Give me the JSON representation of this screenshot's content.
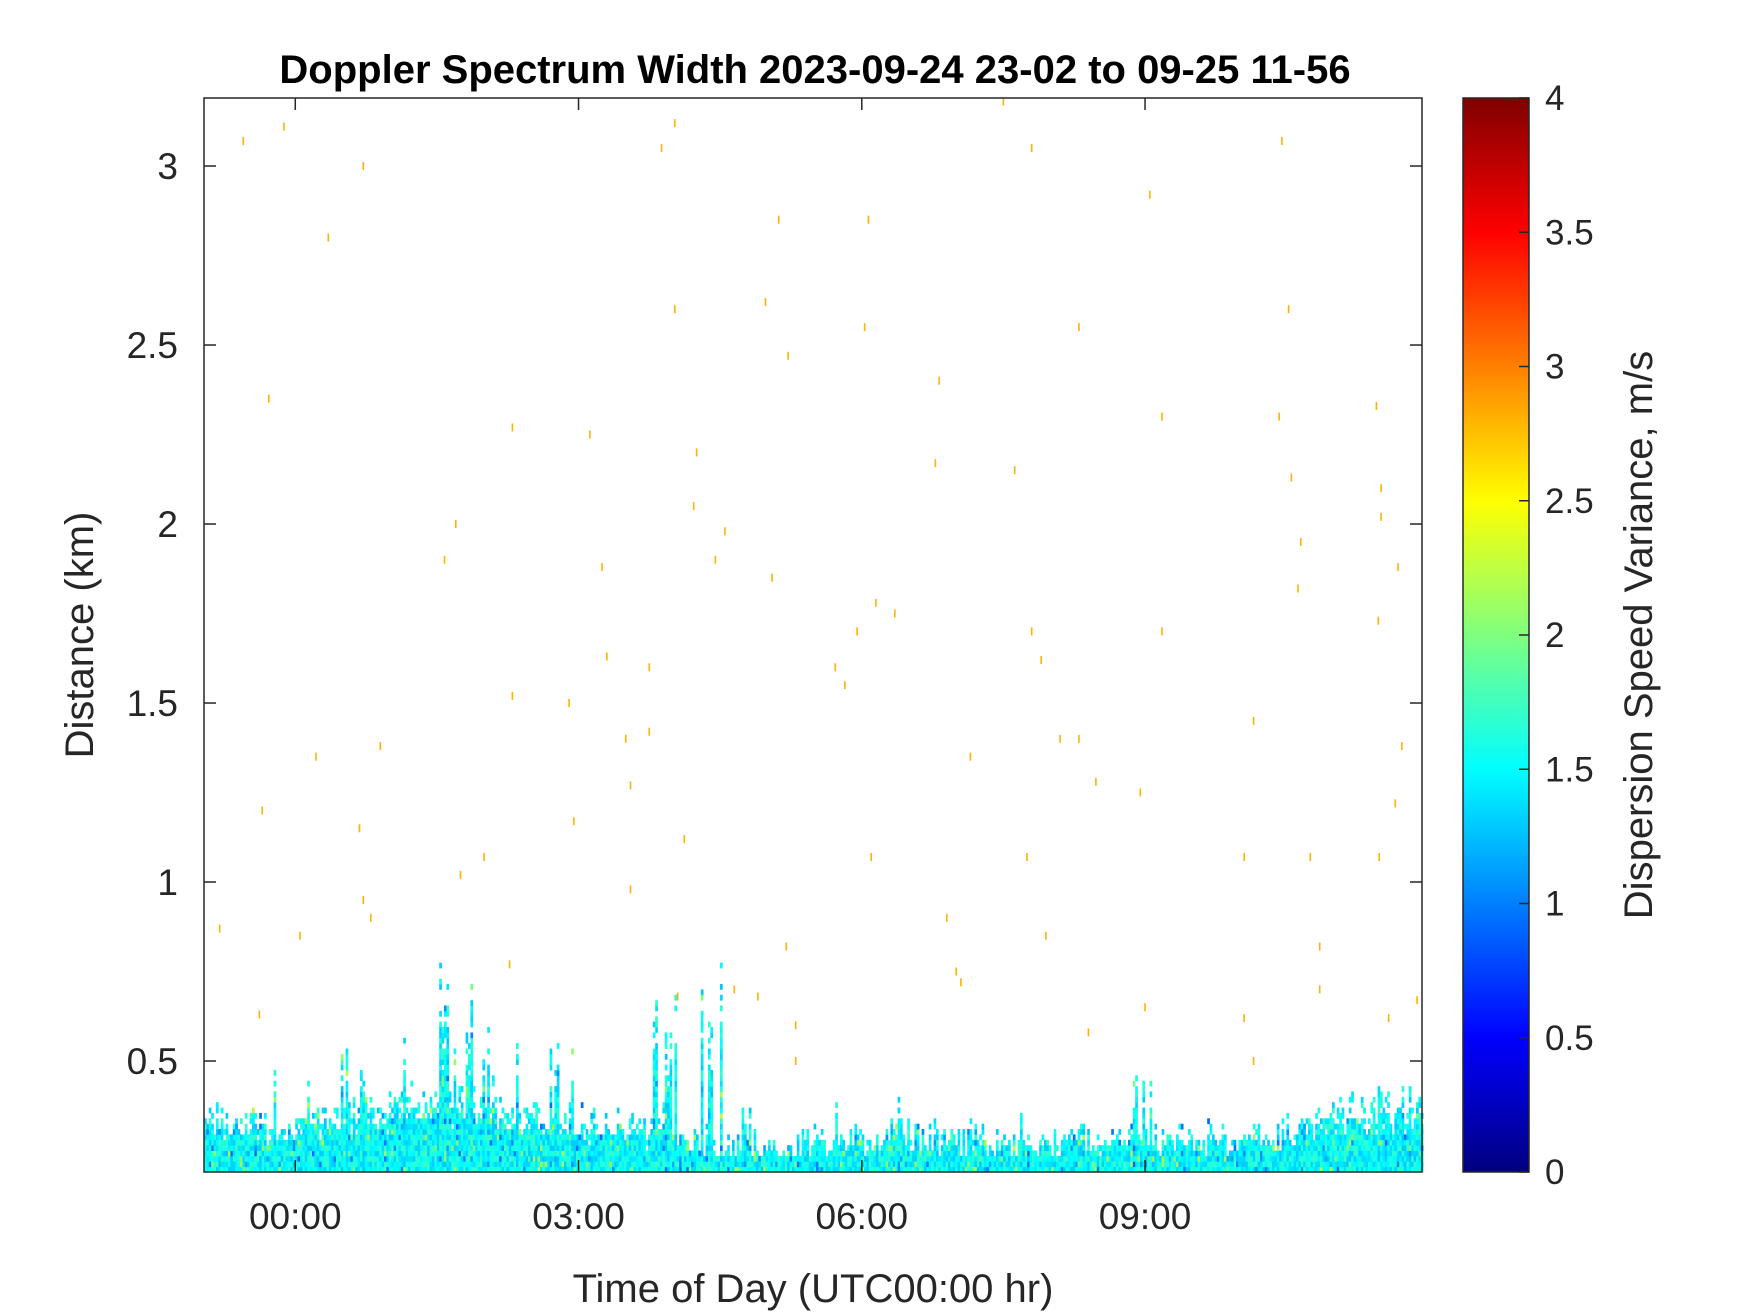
{
  "chart_data": {
    "type": "heatmap",
    "title": "Doppler Spectrum Width 2023-09-24 23-02 to 09-25 11-56",
    "xlabel": "Time of Day (UTC00:00 hr)",
    "ylabel": "Distance (km)",
    "xlim_hours": [
      -0.9667,
      11.9333
    ],
    "ylim": [
      0.19,
      3.19
    ],
    "xticks": [
      {
        "value": 0,
        "label": "00:00"
      },
      {
        "value": 3,
        "label": "03:00"
      },
      {
        "value": 6,
        "label": "06:00"
      },
      {
        "value": 9,
        "label": "09:00"
      }
    ],
    "yticks": [
      {
        "value": 0.5,
        "label": "0.5"
      },
      {
        "value": 1,
        "label": "1"
      },
      {
        "value": 1.5,
        "label": "1.5"
      },
      {
        "value": 2,
        "label": "2"
      },
      {
        "value": 2.5,
        "label": "2.5"
      },
      {
        "value": 3,
        "label": "3"
      }
    ],
    "colorbar": {
      "label": "Dispersion Speed Variance, m/s",
      "colormap": "jet",
      "range": [
        0,
        4
      ],
      "ticks": [
        {
          "value": 0,
          "label": "0"
        },
        {
          "value": 0.5,
          "label": "0.5"
        },
        {
          "value": 1,
          "label": "1"
        },
        {
          "value": 1.5,
          "label": "1.5"
        },
        {
          "value": 2,
          "label": "2"
        },
        {
          "value": 2.5,
          "label": "2.5"
        },
        {
          "value": 3,
          "label": "3"
        },
        {
          "value": 3.5,
          "label": "3.5"
        },
        {
          "value": 4,
          "label": "4"
        }
      ]
    },
    "surface_band": {
      "description_value": "dense cells of 1.2-1.8 m/s from the lowest range gate up to about 0.3-0.45 km, occasionally extending to about 0.78 km",
      "typical_value": 1.5,
      "base_top_km": [
        {
          "t": -0.95,
          "km": 0.34
        },
        {
          "t": 0.0,
          "km": 0.33
        },
        {
          "t": 0.5,
          "km": 0.36
        },
        {
          "t": 1.5,
          "km": 0.4
        },
        {
          "t": 2.5,
          "km": 0.36
        },
        {
          "t": 3.5,
          "km": 0.32
        },
        {
          "t": 4.5,
          "km": 0.27
        },
        {
          "t": 5.5,
          "km": 0.27
        },
        {
          "t": 6.5,
          "km": 0.29
        },
        {
          "t": 7.5,
          "km": 0.27
        },
        {
          "t": 8.5,
          "km": 0.28
        },
        {
          "t": 9.5,
          "km": 0.27
        },
        {
          "t": 10.5,
          "km": 0.3
        },
        {
          "t": 11.0,
          "km": 0.36
        },
        {
          "t": 11.93,
          "km": 0.38
        }
      ],
      "tall_spikes": [
        {
          "t": 0.6,
          "km": 0.6
        },
        {
          "t": 1.5,
          "km": 0.78
        },
        {
          "t": 1.75,
          "km": 0.78
        },
        {
          "t": 2.05,
          "km": 0.68
        },
        {
          "t": 2.85,
          "km": 0.65
        },
        {
          "t": 3.35,
          "km": 0.73
        },
        {
          "t": 3.9,
          "km": 0.72
        },
        {
          "t": 4.4,
          "km": 0.72
        },
        {
          "t": 6.45,
          "km": 0.45
        },
        {
          "t": 11.2,
          "km": 0.44
        }
      ]
    },
    "sparse_points_value": 2.8,
    "sparse_points": [
      {
        "t": -0.55,
        "km": 3.07
      },
      {
        "t": -0.12,
        "km": 3.11
      },
      {
        "t": 0.72,
        "km": 3.0
      },
      {
        "t": 0.35,
        "km": 2.8
      },
      {
        "t": -0.28,
        "km": 2.35
      },
      {
        "t": 1.7,
        "km": 2.0
      },
      {
        "t": 1.58,
        "km": 1.9
      },
      {
        "t": 2.3,
        "km": 2.27
      },
      {
        "t": 3.12,
        "km": 2.25
      },
      {
        "t": 3.25,
        "km": 1.88
      },
      {
        "t": 3.3,
        "km": 1.63
      },
      {
        "t": 3.75,
        "km": 1.6
      },
      {
        "t": 3.88,
        "km": 3.05
      },
      {
        "t": 4.02,
        "km": 3.12
      },
      {
        "t": 4.02,
        "km": 2.6
      },
      {
        "t": 4.25,
        "km": 2.2
      },
      {
        "t": 4.22,
        "km": 2.05
      },
      {
        "t": 4.45,
        "km": 1.9
      },
      {
        "t": 4.55,
        "km": 1.98
      },
      {
        "t": 4.98,
        "km": 2.62
      },
      {
        "t": 5.12,
        "km": 2.85
      },
      {
        "t": 5.05,
        "km": 1.85
      },
      {
        "t": 5.22,
        "km": 2.47
      },
      {
        "t": 6.03,
        "km": 2.55
      },
      {
        "t": 6.07,
        "km": 2.85
      },
      {
        "t": 6.15,
        "km": 1.78
      },
      {
        "t": 6.35,
        "km": 1.75
      },
      {
        "t": 5.95,
        "km": 1.7
      },
      {
        "t": 5.72,
        "km": 1.6
      },
      {
        "t": 5.82,
        "km": 1.55
      },
      {
        "t": 6.82,
        "km": 2.4
      },
      {
        "t": 6.78,
        "km": 2.17
      },
      {
        "t": 7.62,
        "km": 2.15
      },
      {
        "t": 7.5,
        "km": 3.18
      },
      {
        "t": 7.8,
        "km": 3.05
      },
      {
        "t": 8.3,
        "km": 2.55
      },
      {
        "t": 7.8,
        "km": 1.7
      },
      {
        "t": 7.9,
        "km": 1.62
      },
      {
        "t": 9.05,
        "km": 2.92
      },
      {
        "t": 9.18,
        "km": 2.3
      },
      {
        "t": 9.18,
        "km": 1.7
      },
      {
        "t": 10.45,
        "km": 3.07
      },
      {
        "t": 10.52,
        "km": 2.6
      },
      {
        "t": 10.42,
        "km": 2.3
      },
      {
        "t": 10.55,
        "km": 2.13
      },
      {
        "t": 10.65,
        "km": 1.95
      },
      {
        "t": 10.62,
        "km": 1.82
      },
      {
        "t": 11.45,
        "km": 2.33
      },
      {
        "t": 11.5,
        "km": 2.1
      },
      {
        "t": 11.5,
        "km": 2.02
      },
      {
        "t": 11.47,
        "km": 1.73
      },
      {
        "t": 11.68,
        "km": 1.88
      },
      {
        "t": 11.72,
        "km": 1.38
      },
      {
        "t": 11.65,
        "km": 1.22
      },
      {
        "t": 11.48,
        "km": 1.07
      },
      {
        "t": 11.58,
        "km": 0.62
      },
      {
        "t": 11.88,
        "km": 0.67
      },
      {
        "t": -0.8,
        "km": 0.87
      },
      {
        "t": -0.38,
        "km": 0.63
      },
      {
        "t": -0.35,
        "km": 1.2
      },
      {
        "t": 0.05,
        "km": 0.85
      },
      {
        "t": 0.22,
        "km": 1.35
      },
      {
        "t": 0.68,
        "km": 1.15
      },
      {
        "t": 0.72,
        "km": 0.95
      },
      {
        "t": 0.8,
        "km": 0.9
      },
      {
        "t": 0.9,
        "km": 1.38
      },
      {
        "t": 1.75,
        "km": 1.02
      },
      {
        "t": 2.0,
        "km": 1.07
      },
      {
        "t": 2.3,
        "km": 1.52
      },
      {
        "t": 2.27,
        "km": 0.77
      },
      {
        "t": 2.9,
        "km": 1.5
      },
      {
        "t": 2.95,
        "km": 1.17
      },
      {
        "t": 3.5,
        "km": 1.4
      },
      {
        "t": 3.55,
        "km": 1.27
      },
      {
        "t": 3.55,
        "km": 0.98
      },
      {
        "t": 3.75,
        "km": 1.42
      },
      {
        "t": 4.12,
        "km": 1.12
      },
      {
        "t": 4.05,
        "km": 0.68
      },
      {
        "t": 4.65,
        "km": 0.7
      },
      {
        "t": 4.9,
        "km": 0.68
      },
      {
        "t": 5.2,
        "km": 0.82
      },
      {
        "t": 5.3,
        "km": 0.6
      },
      {
        "t": 5.3,
        "km": 0.5
      },
      {
        "t": 6.1,
        "km": 1.07
      },
      {
        "t": 6.9,
        "km": 0.9
      },
      {
        "t": 7.0,
        "km": 0.75
      },
      {
        "t": 7.05,
        "km": 0.72
      },
      {
        "t": 7.15,
        "km": 1.35
      },
      {
        "t": 7.75,
        "km": 1.07
      },
      {
        "t": 7.95,
        "km": 0.85
      },
      {
        "t": 8.1,
        "km": 1.4
      },
      {
        "t": 8.3,
        "km": 1.4
      },
      {
        "t": 8.48,
        "km": 1.28
      },
      {
        "t": 8.4,
        "km": 0.58
      },
      {
        "t": 8.95,
        "km": 1.25
      },
      {
        "t": 9.0,
        "km": 0.65
      },
      {
        "t": 10.05,
        "km": 1.07
      },
      {
        "t": 10.15,
        "km": 1.45
      },
      {
        "t": 10.05,
        "km": 0.62
      },
      {
        "t": 10.15,
        "km": 0.5
      },
      {
        "t": 10.75,
        "km": 1.07
      },
      {
        "t": 10.85,
        "km": 0.82
      },
      {
        "t": 10.85,
        "km": 0.7
      }
    ]
  }
}
